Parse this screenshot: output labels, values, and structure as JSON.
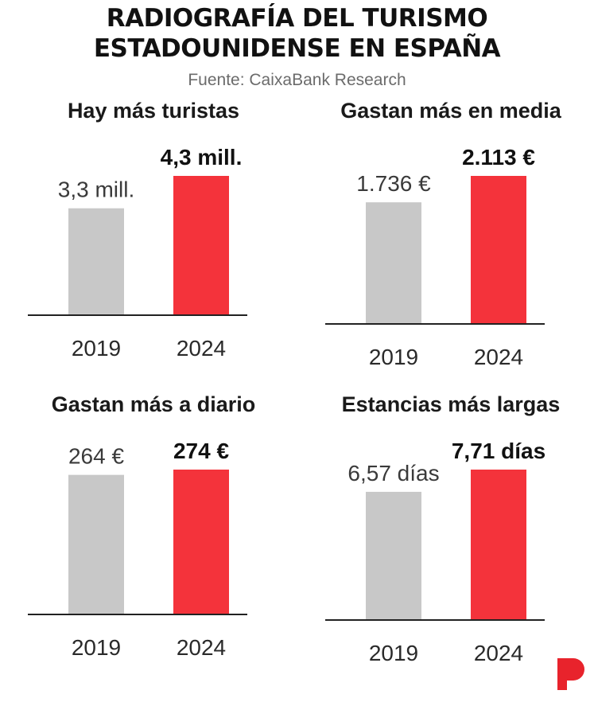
{
  "header": {
    "title_line1": "RADIOGRAFÍA DEL TURISMO",
    "title_line2": "ESTADOUNIDENSE EN ESPAÑA",
    "source": "Fuente: CaixaBank Research"
  },
  "colors": {
    "year_2019": "#c8c8c8",
    "year_2024": "#f4333b",
    "axis": "#222222",
    "logo": "#e8232c"
  },
  "logo": {
    "icon": "p-logo-icon"
  },
  "chart_data": [
    {
      "type": "bar",
      "title": "Hay más turistas",
      "categories": [
        "2019",
        "2024"
      ],
      "values": [
        3.3,
        4.3
      ],
      "value_labels": [
        "3,3 mill.",
        "4,3 mill."
      ],
      "unit": "millones de turistas",
      "ylim": [
        0,
        4.3
      ],
      "grid": false,
      "legend": "none"
    },
    {
      "type": "bar",
      "title": "Gastan más en media",
      "categories": [
        "2019",
        "2024"
      ],
      "values": [
        1736,
        2113
      ],
      "value_labels": [
        "1.736 €",
        "2.113 €"
      ],
      "unit": "€",
      "ylim": [
        0,
        2113
      ],
      "grid": false,
      "legend": "none"
    },
    {
      "type": "bar",
      "title": "Gastan más a diario",
      "categories": [
        "2019",
        "2024"
      ],
      "values": [
        264,
        274
      ],
      "value_labels": [
        "264 €",
        "274 €"
      ],
      "unit": "€",
      "ylim": [
        0,
        274
      ],
      "grid": false,
      "legend": "none"
    },
    {
      "type": "bar",
      "title": "Estancias más largas",
      "categories": [
        "2019",
        "2024"
      ],
      "values": [
        6.57,
        7.71
      ],
      "value_labels": [
        "6,57 días",
        "7,71 días"
      ],
      "unit": "días",
      "ylim": [
        0,
        7.71
      ],
      "grid": false,
      "legend": "none"
    }
  ]
}
